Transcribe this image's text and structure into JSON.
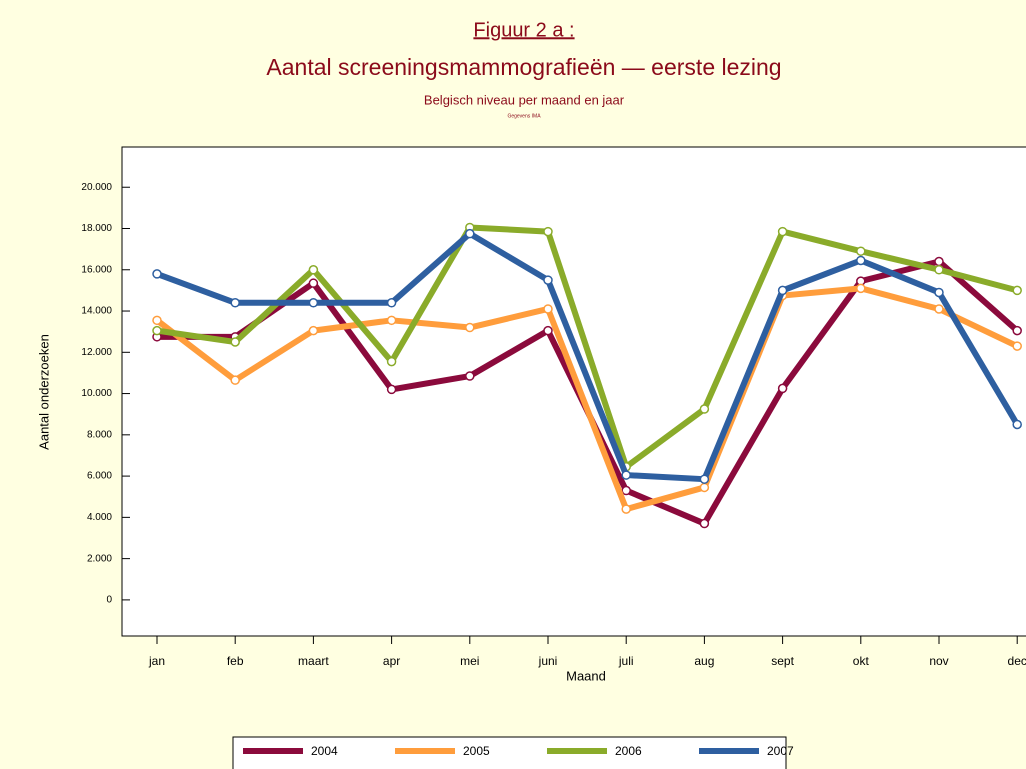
{
  "chart_data": {
    "type": "line",
    "title": "Figuur 2 a :",
    "subtitle": "Aantal screeningsmammografieën — eerste lezing",
    "subtitle2": "Belgisch niveau per maand en jaar",
    "source": "Gegevens IMA",
    "x_label": "Maand",
    "y_label": "Aantal onderzoeken",
    "categories": [
      "jan",
      "feb",
      "maart",
      "apr",
      "mei",
      "juni",
      "juli",
      "aug",
      "sept",
      "okt",
      "nov",
      "dec"
    ],
    "ylim": [
      -1750,
      21950
    ],
    "yticks": [
      0,
      {
        "value": 2000,
        "label": "2.000"
      },
      {
        "value": 4000,
        "label": "4.000"
      },
      {
        "value": 6000,
        "label": "6.000"
      },
      {
        "value": 8000,
        "label": "8.000"
      },
      {
        "value": 10000,
        "label": "10.000"
      },
      {
        "value": 12000,
        "label": "12.000"
      },
      {
        "value": 14000,
        "label": "14.000"
      },
      {
        "value": 16000,
        "label": "16.000"
      },
      {
        "value": 18000,
        "label": "18.000"
      },
      {
        "value": 20000,
        "label": "20.000"
      }
    ],
    "series": [
      {
        "name": "2004",
        "color": "#8b0a3c",
        "values": [
          12750,
          12750,
          15350,
          10200,
          10850,
          13050,
          5300,
          3700,
          10250,
          15450,
          16400,
          13050
        ]
      },
      {
        "name": "2005",
        "color": "#ff9d3c",
        "values": [
          13550,
          10650,
          13050,
          13550,
          13200,
          14100,
          4400,
          5450,
          14750,
          15100,
          14100,
          12300
        ]
      },
      {
        "name": "2006",
        "color": "#8aab2a",
        "values": [
          13050,
          12500,
          16000,
          11550,
          18050,
          17850,
          6450,
          9250,
          17850,
          16900,
          16000,
          15000
        ]
      },
      {
        "name": "2007",
        "color": "#2e5fa0",
        "values": [
          15800,
          14400,
          14400,
          14400,
          17750,
          15500,
          6050,
          5850,
          15000,
          16450,
          14900,
          8500
        ]
      }
    ]
  }
}
